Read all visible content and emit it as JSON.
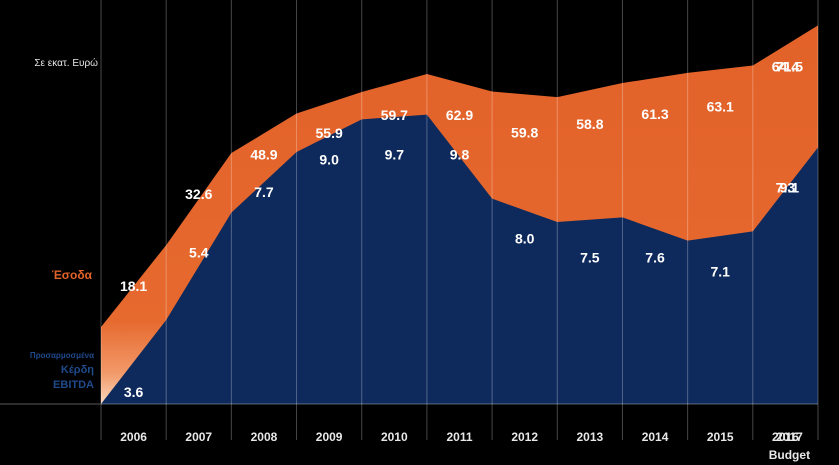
{
  "chart_data": {
    "type": "area",
    "unit_label": "Σε εκατ. Ευρώ",
    "categories": [
      "2006",
      "2007",
      "2008",
      "2009",
      "2010",
      "2011",
      "2012",
      "2013",
      "2014",
      "2015",
      "2016",
      "2017"
    ],
    "sub_labels": {
      "2017": "Budget"
    },
    "series": [
      {
        "name": "Έσοδα",
        "color": "#e2622a",
        "values": [
          18.1,
          32.6,
          48.9,
          55.9,
          59.7,
          62.9,
          59.8,
          58.8,
          61.3,
          63.1,
          64.4,
          71.5
        ],
        "labels": [
          "18.1",
          "32.6",
          "48.9",
          "55.9",
          "59.7",
          "62.9",
          "59.8",
          "58.8",
          "61.3",
          "63.1",
          "64.4",
          "71.5"
        ]
      },
      {
        "name": "Προσαρμοσμένα Κέρδη EBITDA",
        "name_lines": [
          "Προσαρμοσμένα",
          "Κέρδη",
          "EBITDA"
        ],
        "color": "#0e2a5c",
        "values": [
          3.6,
          5.4,
          7.7,
          9.0,
          9.7,
          9.8,
          8.0,
          7.5,
          7.6,
          7.1,
          7.3,
          9.1
        ],
        "labels": [
          "3.6",
          "5.4",
          "7.7",
          "9.0",
          "9.7",
          "9.8",
          "8.0",
          "7.5",
          "7.6",
          "7.1",
          "7.3",
          "9.1"
        ]
      }
    ],
    "colors": {
      "revenue": "#e2622a",
      "ebitda": "#0e2a5c",
      "background": "#000000",
      "axis_text": "#e8e8e8"
    }
  }
}
